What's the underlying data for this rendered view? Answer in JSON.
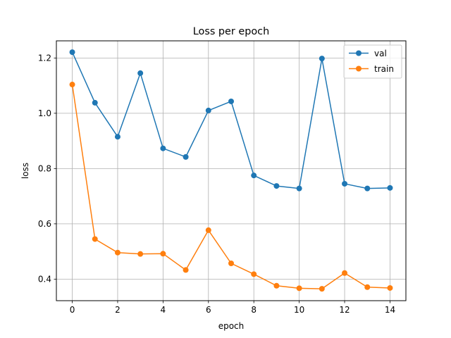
{
  "chart_data": {
    "type": "line",
    "title": "Loss per epoch",
    "xlabel": "epoch",
    "ylabel": "loss",
    "x": [
      0,
      1,
      2,
      3,
      4,
      5,
      6,
      7,
      8,
      9,
      10,
      11,
      12,
      13,
      14
    ],
    "xticks": [
      0,
      2,
      4,
      6,
      8,
      10,
      12,
      14
    ],
    "yticks": [
      0.4,
      0.6,
      0.8,
      1.0,
      1.2
    ],
    "ytick_labels": [
      "0.4",
      "0.6",
      "0.8",
      "1.0",
      "1.2"
    ],
    "xlim": [
      -0.7,
      14.7
    ],
    "ylim": [
      0.322,
      1.262
    ],
    "grid": true,
    "legend_position": "top-right",
    "series": [
      {
        "name": "val",
        "color": "#1f77b4",
        "values": [
          1.221,
          1.038,
          0.915,
          1.145,
          0.873,
          0.842,
          1.01,
          1.043,
          0.775,
          0.737,
          0.728,
          1.198,
          0.745,
          0.728,
          0.73
        ]
      },
      {
        "name": "train",
        "color": "#ff7f0e",
        "values": [
          1.104,
          0.545,
          0.496,
          0.491,
          0.492,
          0.433,
          0.577,
          0.457,
          0.418,
          0.376,
          0.367,
          0.365,
          0.422,
          0.371,
          0.368
        ]
      }
    ]
  }
}
